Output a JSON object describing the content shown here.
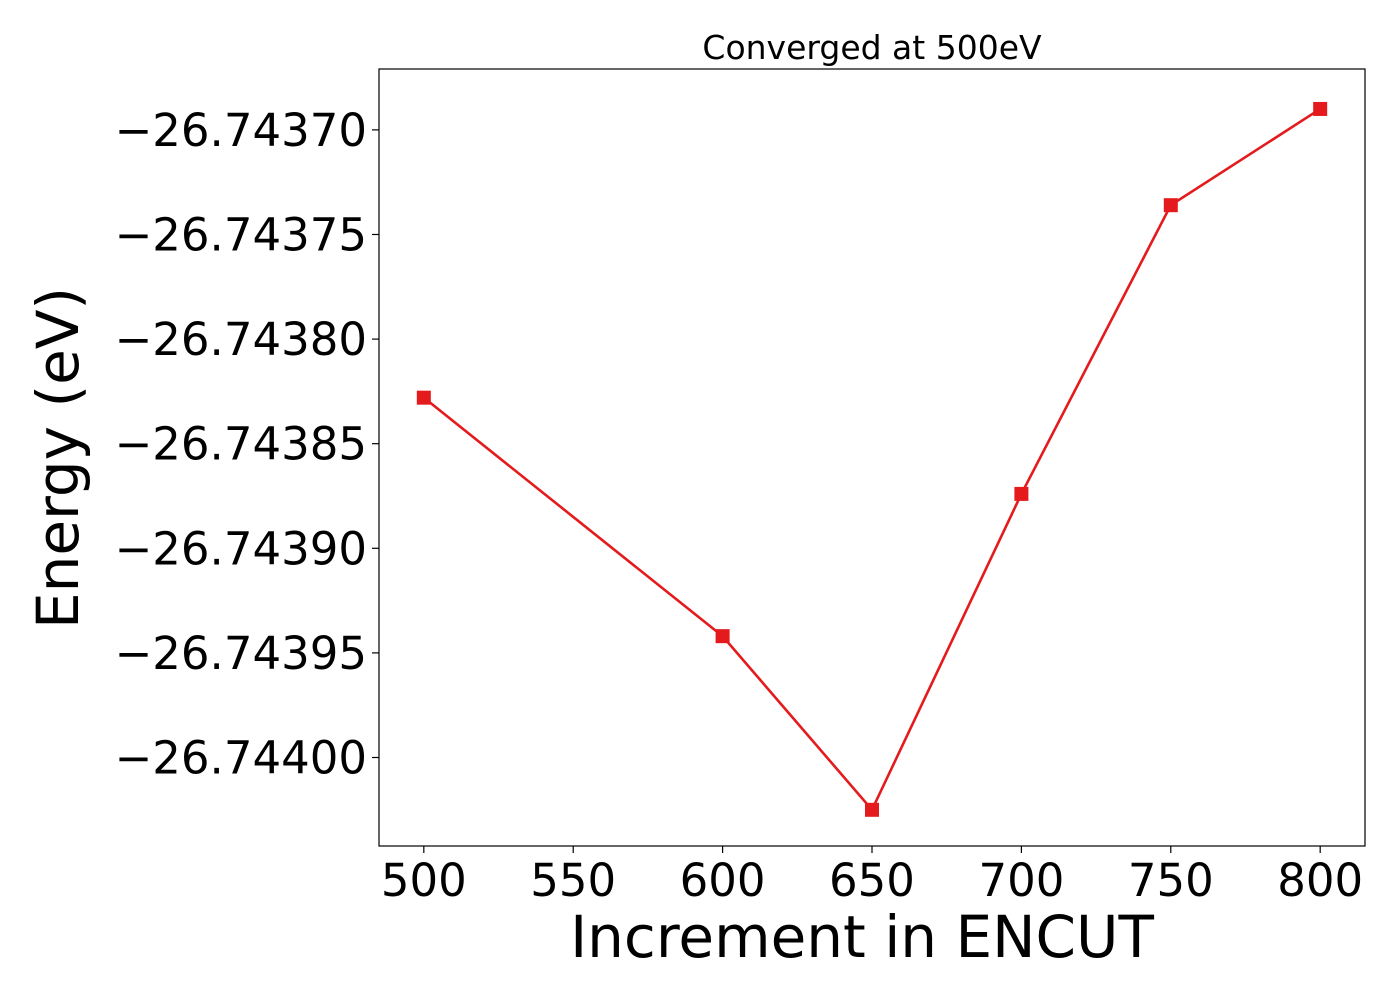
{
  "chart_data": {
    "type": "line",
    "title": "Converged at 500eV",
    "xlabel": "Increment in ENCUT",
    "ylabel": "Energy (eV)",
    "x": [
      500,
      600,
      650,
      700,
      750,
      800
    ],
    "series": [
      {
        "values": [
          -26.743828,
          -26.743942,
          -26.744025,
          -26.743874,
          -26.743736,
          -26.74369
        ],
        "color": "#e41a1c",
        "marker": "square"
      }
    ],
    "xticks": [
      500,
      550,
      600,
      650,
      700,
      750,
      800
    ],
    "xtick_labels": [
      "500",
      "550",
      "600",
      "650",
      "700",
      "750",
      "800"
    ],
    "yticks": [
      -26.7437,
      -26.74375,
      -26.7438,
      -26.74385,
      -26.7439,
      -26.74395,
      -26.744
    ],
    "ytick_labels": [
      "−26.74370",
      "−26.74375",
      "−26.74380",
      "−26.74385",
      "−26.74390",
      "−26.74395",
      "−26.74400"
    ],
    "xlim": [
      485,
      815
    ],
    "ylim": [
      -26.7440423,
      -26.7436709
    ],
    "grid": false,
    "legend": "none"
  }
}
